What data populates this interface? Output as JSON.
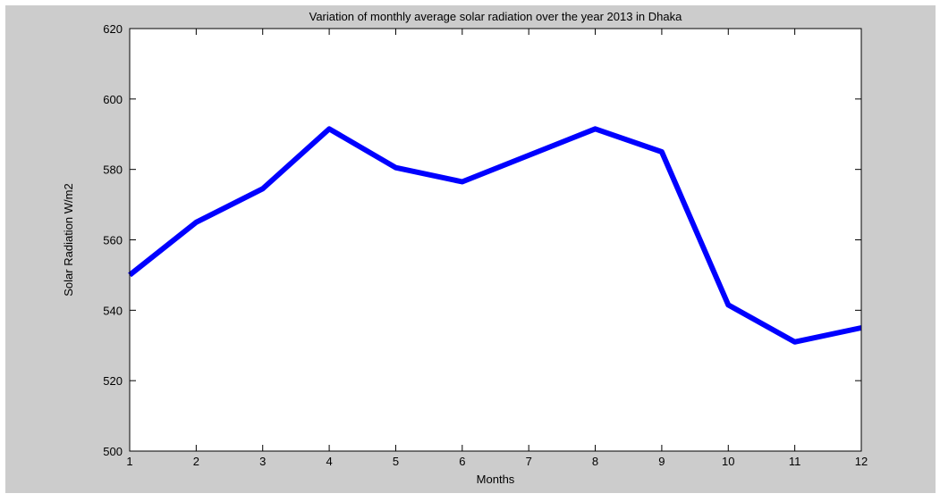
{
  "chart_data": {
    "type": "line",
    "title": "Variation of monthly average solar radiation over the year 2013 in Dhaka",
    "xlabel": "Months",
    "ylabel": "Solar Radiation W/m2",
    "xlim": [
      1,
      12
    ],
    "ylim": [
      500,
      620
    ],
    "xticks": [
      1,
      2,
      3,
      4,
      5,
      6,
      7,
      8,
      9,
      10,
      11,
      12
    ],
    "yticks": [
      500,
      520,
      540,
      560,
      580,
      600,
      620
    ],
    "grid": false,
    "series": [
      {
        "color": "#0000ff",
        "x": [
          1,
          2,
          3,
          4,
          5,
          6,
          7,
          8,
          9,
          10,
          11,
          12
        ],
        "y": [
          550,
          565,
          574.5,
          591.5,
          580.5,
          576.5,
          584,
          591.5,
          585,
          541.5,
          531,
          535
        ]
      }
    ]
  }
}
